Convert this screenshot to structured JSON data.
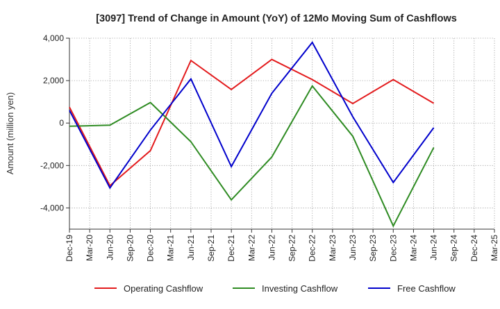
{
  "chart_data": {
    "type": "line",
    "title": "[3097]  Trend of Change in Amount (YoY) of 12Mo Moving Sum of Cashflows",
    "xlabel": "",
    "ylabel": "Amount (million yen)",
    "ylim": [
      -5000,
      4000
    ],
    "yticks": [
      -4000,
      -2000,
      0,
      2000,
      4000
    ],
    "ytick_labels": [
      "-4,000",
      "-2,000",
      "0",
      "2,000",
      "4,000"
    ],
    "grid": true,
    "legend_position": "bottom",
    "categories": [
      "Dec-19",
      "Mar-20",
      "Jun-20",
      "Sep-20",
      "Dec-20",
      "Mar-21",
      "Jun-21",
      "Sep-21",
      "Dec-21",
      "Mar-22",
      "Jun-22",
      "Sep-22",
      "Dec-22",
      "Mar-23",
      "Jun-23",
      "Sep-23",
      "Dec-23",
      "Mar-24",
      "Jun-24",
      "Sep-24",
      "Dec-24",
      "Mar-25"
    ],
    "series": [
      {
        "name": "Operating Cashflow",
        "color": "#e31a1c",
        "points": [
          [
            "Dec-19",
            750
          ],
          [
            "Jun-20",
            -2950
          ],
          [
            "Dec-20",
            -1300
          ],
          [
            "Jun-21",
            2950
          ],
          [
            "Dec-21",
            1580
          ],
          [
            "Jun-22",
            3000
          ],
          [
            "Dec-22",
            2050
          ],
          [
            "Jun-23",
            920
          ],
          [
            "Dec-23",
            2050
          ],
          [
            "Jun-24",
            930
          ]
        ]
      },
      {
        "name": "Investing Cashflow",
        "color": "#2e8b22",
        "points": [
          [
            "Dec-19",
            -150
          ],
          [
            "Jun-20",
            -100
          ],
          [
            "Dec-20",
            970
          ],
          [
            "Jun-21",
            -880
          ],
          [
            "Dec-21",
            -3620
          ],
          [
            "Jun-22",
            -1600
          ],
          [
            "Dec-22",
            1750
          ],
          [
            "Jun-23",
            -620
          ],
          [
            "Dec-23",
            -4850
          ],
          [
            "Jun-24",
            -1150
          ]
        ]
      },
      {
        "name": "Free Cashflow",
        "color": "#0000cc",
        "points": [
          [
            "Dec-19",
            600
          ],
          [
            "Jun-20",
            -3060
          ],
          [
            "Dec-20",
            -330
          ],
          [
            "Jun-21",
            2080
          ],
          [
            "Dec-21",
            -2050
          ],
          [
            "Jun-22",
            1400
          ],
          [
            "Dec-22",
            3800
          ],
          [
            "Jun-23",
            300
          ],
          [
            "Dec-23",
            -2800
          ],
          [
            "Jun-24",
            -220
          ]
        ]
      }
    ]
  }
}
